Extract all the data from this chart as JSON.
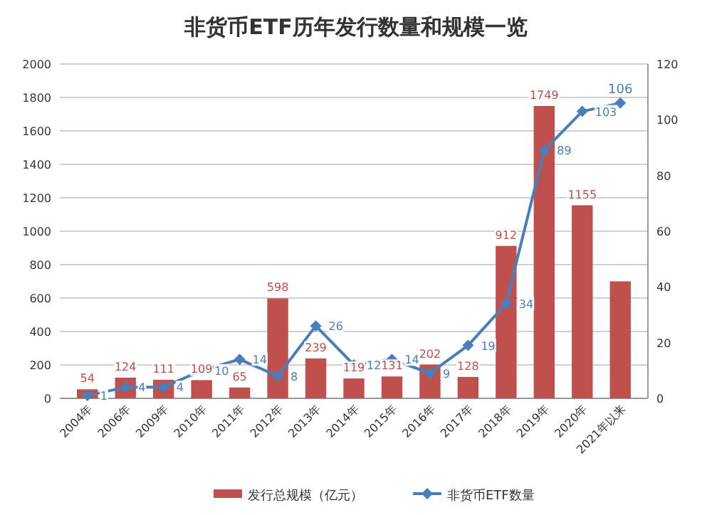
{
  "chart_data": {
    "type": "bar",
    "title": "非货币ETF历年发行数量和规模一览",
    "categories": [
      "2004年",
      "2006年",
      "2009年",
      "2010年",
      "2011年",
      "2012年",
      "2013年",
      "2014年",
      "2015年",
      "2016年",
      "2017年",
      "2018年",
      "2019年",
      "2020年",
      "2021年以来"
    ],
    "series": [
      {
        "name": "发行总规模（亿元）",
        "color": "#c0504d",
        "values": [
          54,
          124,
          111,
          109,
          65,
          598,
          239,
          119,
          131,
          202,
          128,
          912,
          1749,
          1155,
          700
        ],
        "value_labels": [
          "54",
          "124",
          "111",
          "109",
          "65",
          "598",
          "239",
          "119",
          "131",
          "202",
          "128",
          "912",
          "1749",
          "1155",
          null
        ]
      },
      {
        "name": "非货币ETF数量",
        "type": "line",
        "axis": "y2",
        "color": "#4a7ebb",
        "marker": "diamond",
        "values": [
          1,
          4,
          4,
          10,
          14,
          8,
          26,
          12,
          14,
          9,
          19,
          34,
          89,
          103,
          106
        ],
        "value_labels": [
          "1",
          "4",
          "4",
          "10",
          "14",
          "8",
          "26",
          "12",
          "14",
          "9",
          "19",
          "34",
          "89",
          "103",
          "106"
        ]
      }
    ],
    "ylim": [
      0,
      2000
    ],
    "yticks": [
      0,
      200,
      400,
      600,
      800,
      1000,
      1200,
      1400,
      1600,
      1800,
      2000
    ],
    "y2lim": [
      0,
      120
    ],
    "y2ticks": [
      0,
      20,
      40,
      60,
      80,
      100,
      120
    ],
    "grid": "y",
    "legend": "bottom"
  }
}
